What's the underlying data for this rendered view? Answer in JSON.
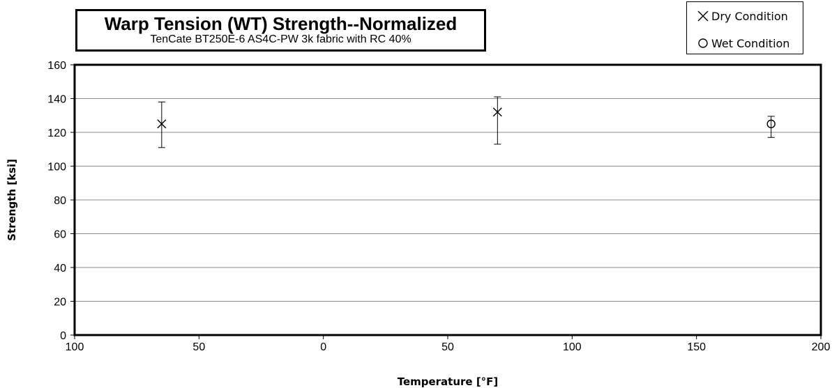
{
  "chart_data": {
    "type": "scatter",
    "title": "Warp Tension (WT) Strength--Normalized",
    "subtitle": "TenCate  BT250E-6 AS4C-PW 3k fabric with RC 40%",
    "xlabel": "Temperature [°F]",
    "ylabel": "Strength [ksi]",
    "xlim": [
      -100,
      200
    ],
    "ylim": [
      0,
      160
    ],
    "x_ticks": [
      -100,
      -50,
      0,
      50,
      100,
      150,
      200
    ],
    "x_tick_labels": [
      "100",
      "50",
      "0",
      "50",
      "100",
      "150",
      "200"
    ],
    "y_ticks": [
      0,
      20,
      40,
      60,
      80,
      100,
      120,
      140,
      160
    ],
    "y_tick_labels": [
      "0",
      "20",
      "40",
      "60",
      "80",
      "100",
      "120",
      "140",
      "160"
    ],
    "grid": "horizontal",
    "legend_position": "top-right",
    "series": [
      {
        "name": "Dry Condition",
        "marker": "x",
        "points": [
          {
            "x": -65,
            "y": 125,
            "err_low": 111,
            "err_high": 138
          },
          {
            "x": 70,
            "y": 132,
            "err_low": 113,
            "err_high": 141
          }
        ]
      },
      {
        "name": "Wet Condition",
        "marker": "circle",
        "points": [
          {
            "x": 180,
            "y": 125,
            "err_low": 117,
            "err_high": 129.5
          }
        ]
      }
    ]
  }
}
